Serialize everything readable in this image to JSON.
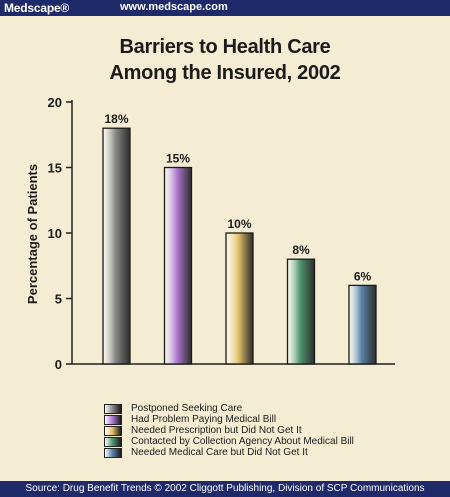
{
  "header": {
    "logo": "Medscape®",
    "url": "www.medscape.com"
  },
  "footer": {
    "source": "Source: Drug Benefit Trends © 2002 Cliggott Publishing, Division of SCP Communications"
  },
  "chart_data": {
    "type": "bar",
    "title_line1": "Barriers to Health Care",
    "title_line2": "Among the Insured, 2002",
    "ylabel": "Percentage of Patients",
    "ylim": [
      0,
      20
    ],
    "yticks": [
      0,
      5,
      10,
      15,
      20
    ],
    "categories": [
      "Postponed Seeking Care",
      "Had Problem Paying Medical Bill",
      "Needed Prescription but Did Not Get It",
      "Contacted by Collection Agency About Medical Bill",
      "Needed Medical Care but Did Not Get It"
    ],
    "values": [
      18,
      15,
      10,
      8,
      6
    ],
    "data_labels": [
      "18%",
      "15%",
      "10%",
      "8%",
      "6%"
    ],
    "colors": [
      "#8a8a8a",
      "#b07ad6",
      "#e4c46a",
      "#4f9a72",
      "#5a86ad"
    ],
    "grid": false,
    "legend_position": "bottom"
  }
}
